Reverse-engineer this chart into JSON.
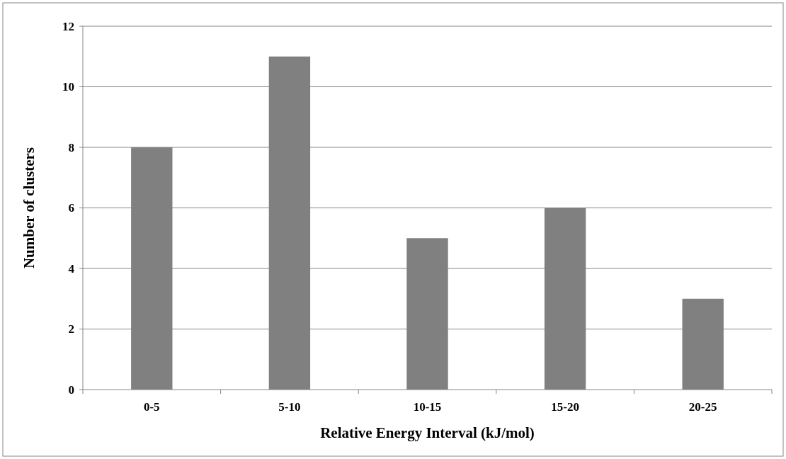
{
  "chart_data": {
    "type": "bar",
    "xlabel": "Relative Energy Interval (kJ/mol)",
    "ylabel": "Number of clusters",
    "categories": [
      "0-5",
      "5-10",
      "10-15",
      "15-20",
      "20-25"
    ],
    "values": [
      8,
      11,
      5,
      6,
      3
    ],
    "color": "#808080",
    "ylim": [
      0,
      12
    ],
    "yticks": [
      0,
      2,
      4,
      6,
      8,
      10,
      12
    ],
    "grid": "y"
  }
}
